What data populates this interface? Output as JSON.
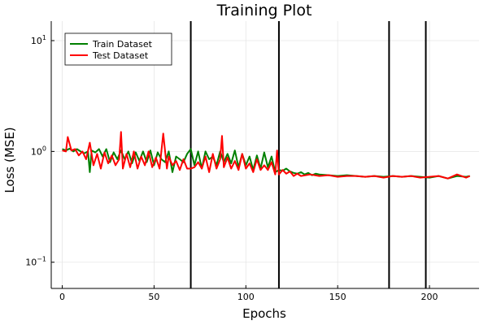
{
  "chart_data": {
    "type": "line",
    "title": "Training Plot",
    "xlabel": "Epochs",
    "ylabel": "Loss (MSE)",
    "xlim": [
      -6,
      227
    ],
    "ylim": [
      0.058,
      15
    ],
    "yscale": "log",
    "grid": true,
    "legend_position": "top-left",
    "x_ticks": [
      0,
      50,
      100,
      150,
      200
    ],
    "y_ticks": [
      {
        "value": 0.1,
        "base": "10",
        "exp": "−1"
      },
      {
        "value": 1,
        "base": "10",
        "exp": "0"
      },
      {
        "value": 10,
        "base": "10",
        "exp": "1"
      }
    ],
    "vlines": [
      70,
      118,
      178,
      198
    ],
    "vline_color": "#000000",
    "series": [
      {
        "name": "Train Dataset",
        "color": "#008000",
        "x": [
          0,
          2,
          4,
          6,
          8,
          10,
          12,
          14,
          15,
          16,
          18,
          20,
          22,
          24,
          26,
          28,
          30,
          32,
          34,
          36,
          38,
          40,
          42,
          44,
          46,
          48,
          50,
          52,
          54,
          56,
          58,
          60,
          62,
          64,
          66,
          68,
          70,
          72,
          74,
          76,
          78,
          80,
          82,
          84,
          86,
          88,
          90,
          92,
          94,
          96,
          98,
          100,
          102,
          104,
          106,
          108,
          110,
          112,
          114,
          116,
          118,
          120,
          122,
          124,
          126,
          128,
          130,
          132,
          134,
          136,
          138,
          140,
          145,
          150,
          155,
          160,
          165,
          170,
          175,
          180,
          185,
          190,
          195,
          200,
          205,
          210,
          215,
          220,
          222
        ],
        "values": [
          1.05,
          1.02,
          1.06,
          1.0,
          1.05,
          1.0,
          0.96,
          1.0,
          0.65,
          1.02,
          0.98,
          1.05,
          0.9,
          1.05,
          0.8,
          0.98,
          0.85,
          1.02,
          0.85,
          1.0,
          0.78,
          0.98,
          0.82,
          1.0,
          0.8,
          1.02,
          0.75,
          0.98,
          0.85,
          0.8,
          1.0,
          0.65,
          0.9,
          0.85,
          0.8,
          0.95,
          1.05,
          0.75,
          1.0,
          0.7,
          1.0,
          0.85,
          0.9,
          0.75,
          1.0,
          0.8,
          0.95,
          0.78,
          1.02,
          0.72,
          0.95,
          0.75,
          0.9,
          0.68,
          0.92,
          0.7,
          0.98,
          0.72,
          0.9,
          0.65,
          0.68,
          0.67,
          0.7,
          0.66,
          0.64,
          0.63,
          0.65,
          0.62,
          0.64,
          0.61,
          0.63,
          0.62,
          0.61,
          0.6,
          0.61,
          0.6,
          0.59,
          0.6,
          0.59,
          0.6,
          0.59,
          0.6,
          0.59,
          0.58,
          0.6,
          0.57,
          0.6,
          0.59,
          0.6
        ]
      },
      {
        "name": "Test Dataset",
        "color": "#ff0000",
        "x": [
          0,
          2,
          3,
          5,
          7,
          9,
          11,
          13,
          15,
          17,
          19,
          21,
          23,
          25,
          27,
          29,
          31,
          32,
          33,
          35,
          37,
          39,
          41,
          43,
          45,
          47,
          49,
          51,
          53,
          55,
          57,
          58,
          60,
          62,
          64,
          66,
          68,
          70,
          72,
          74,
          76,
          78,
          80,
          82,
          84,
          86,
          87,
          88,
          90,
          92,
          94,
          96,
          98,
          100,
          102,
          104,
          106,
          108,
          110,
          112,
          114,
          116,
          117,
          118,
          120,
          122,
          124,
          126,
          128,
          130,
          135,
          140,
          145,
          150,
          155,
          160,
          165,
          170,
          175,
          180,
          185,
          190,
          195,
          200,
          205,
          210,
          215,
          220,
          222
        ],
        "values": [
          1.02,
          1.0,
          1.35,
          1.02,
          1.05,
          0.92,
          1.0,
          0.85,
          1.2,
          0.75,
          0.95,
          0.7,
          0.98,
          0.78,
          0.92,
          0.75,
          0.85,
          1.5,
          0.7,
          0.95,
          0.72,
          1.0,
          0.7,
          0.9,
          0.75,
          1.0,
          0.72,
          0.88,
          0.7,
          1.45,
          0.7,
          0.9,
          0.75,
          0.82,
          0.68,
          0.85,
          0.7,
          0.7,
          0.72,
          0.8,
          0.7,
          0.9,
          0.65,
          0.95,
          0.7,
          0.85,
          1.38,
          0.72,
          0.88,
          0.7,
          0.82,
          0.68,
          0.95,
          0.7,
          0.78,
          0.65,
          0.85,
          0.68,
          0.75,
          0.68,
          0.8,
          0.62,
          1.02,
          0.62,
          0.68,
          0.63,
          0.66,
          0.6,
          0.63,
          0.6,
          0.62,
          0.6,
          0.61,
          0.59,
          0.6,
          0.6,
          0.59,
          0.6,
          0.58,
          0.6,
          0.59,
          0.6,
          0.58,
          0.59,
          0.6,
          0.57,
          0.62,
          0.58,
          0.6
        ]
      }
    ]
  }
}
